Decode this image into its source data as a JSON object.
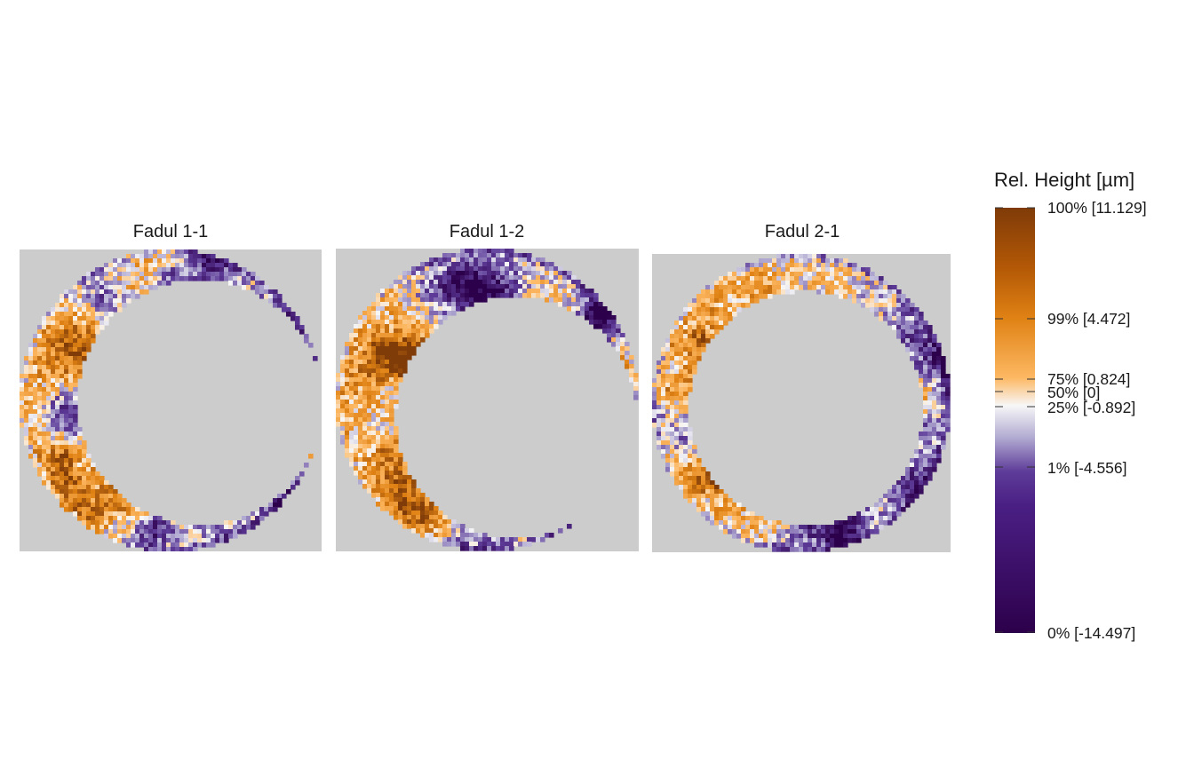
{
  "chart_data": {
    "type": "heatmap",
    "description_type": "faceted surface topography maps",
    "panels": [
      {
        "title": "Fadul 1-1"
      },
      {
        "title": "Fadul 1-2"
      },
      {
        "title": "Fadul 2-1"
      }
    ],
    "legend": {
      "title": "Rel. Height [µm]",
      "placement": "right",
      "range": [
        -14.497,
        11.129
      ],
      "ticks": [
        {
          "label": "100% [11.129]",
          "value": 11.129
        },
        {
          "label": "99% [4.472]",
          "value": 4.472
        },
        {
          "label": "75% [0.824]",
          "value": 0.824
        },
        {
          "label": "50% [0]",
          "value": 0
        },
        {
          "label": "25% [-0.892]",
          "value": -0.892
        },
        {
          "label": "1% [-4.556]",
          "value": -4.556
        },
        {
          "label": "0% [-14.497]",
          "value": -14.497
        }
      ]
    },
    "colors": {
      "background_missing": "#cccccc",
      "high": "#7f3b08",
      "mid_high": "#e08214",
      "light_high": "#fdb863",
      "zero": "#f7f7f7",
      "light_low": "#b2abd2",
      "mid_low": "#5e3c99",
      "low": "#2d004b"
    }
  }
}
